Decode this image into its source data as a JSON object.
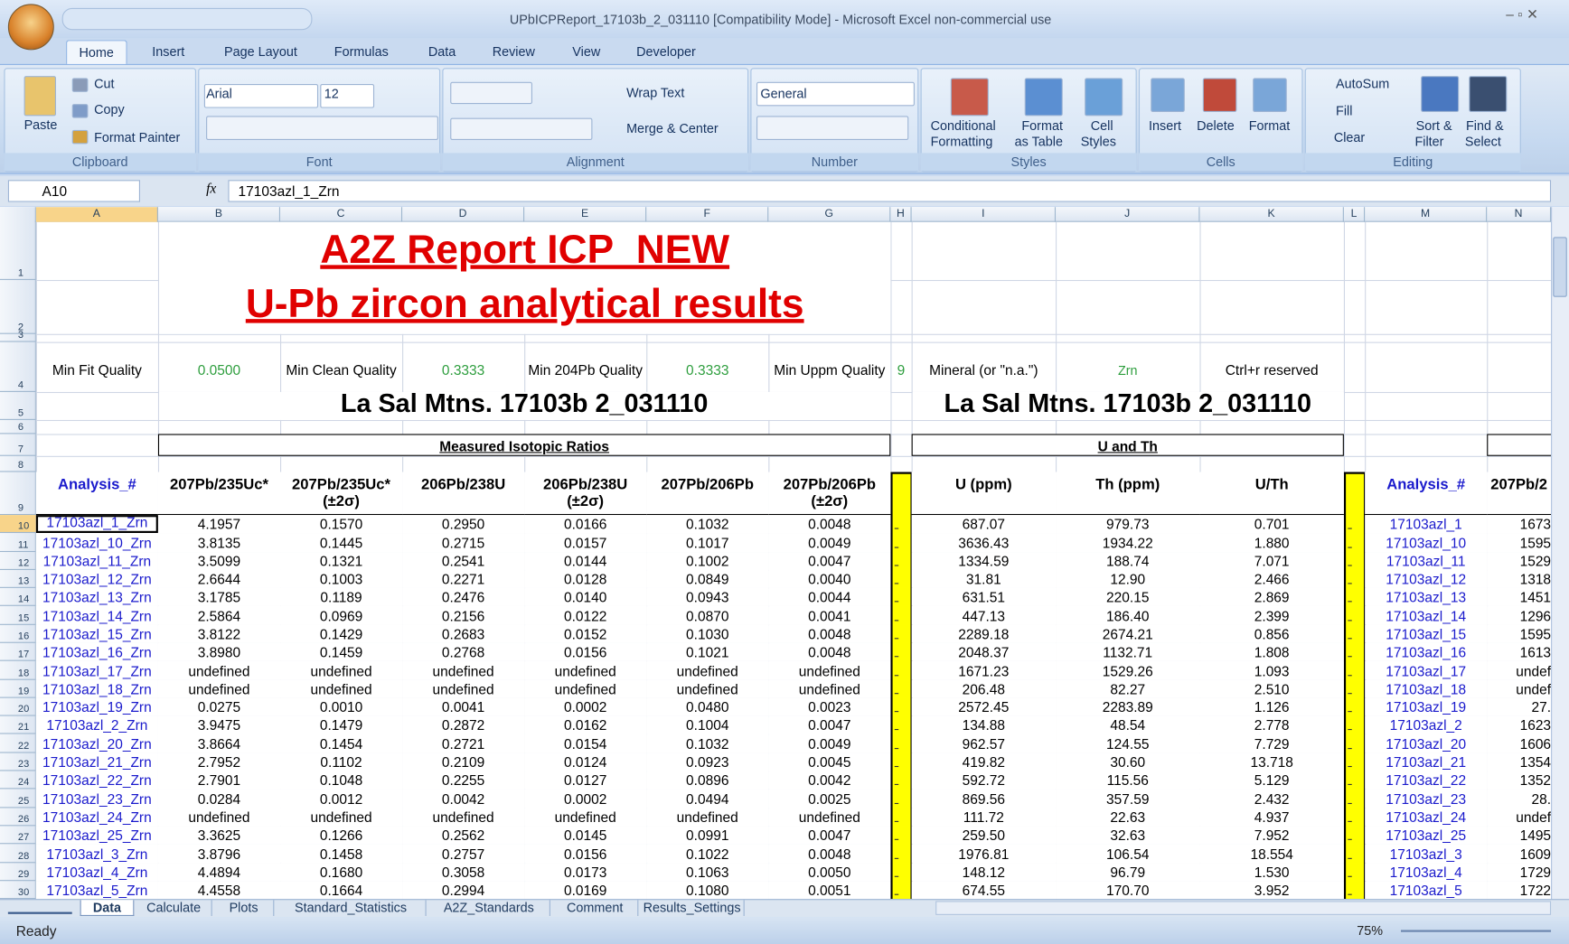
{
  "title_bar": {
    "title": "UPbICPReport_17103b_2_031110  [Compatibility Mode] - Microsoft Excel non-commercial use"
  },
  "ribbon": {
    "tabs": [
      "Home",
      "Insert",
      "Page Layout",
      "Formulas",
      "Data",
      "Review",
      "View",
      "Developer"
    ],
    "active_tab": "Home",
    "groups": [
      {
        "label": "Clipboard",
        "items": [
          "Paste",
          "Cut",
          "Copy",
          "Format Painter"
        ]
      },
      {
        "label": "Font",
        "items": [
          "Arial",
          "12"
        ]
      },
      {
        "label": "Alignment",
        "items": [
          "Wrap Text",
          "Merge & Center"
        ]
      },
      {
        "label": "Number",
        "items": [
          "General"
        ]
      },
      {
        "label": "Styles",
        "items": [
          "Conditional",
          "Formatting",
          "Format",
          "as Table",
          "Cell",
          "Styles"
        ]
      },
      {
        "label": "Cells",
        "items": [
          "Insert",
          "Delete",
          "Format"
        ]
      },
      {
        "label": "Editing",
        "items": [
          "AutoSum",
          "Fill",
          "Clear",
          "Sort &",
          "Filter",
          "Find &",
          "Select"
        ]
      }
    ]
  },
  "formula_bar": {
    "name_box": "A10",
    "fx": "fx",
    "content": "17103azl_1_Zrn"
  },
  "sheet": {
    "columns": [
      "A",
      "B",
      "C",
      "D",
      "E",
      "F",
      "G",
      "H",
      "I",
      "J",
      "K",
      "L",
      "M",
      "N"
    ],
    "row_numbers": [
      1,
      2,
      3,
      4,
      5,
      6,
      7,
      8,
      9,
      10,
      11,
      12,
      13,
      14,
      15,
      16,
      17,
      18,
      19,
      20,
      21,
      22,
      23,
      24,
      25,
      26,
      27,
      28,
      29,
      30
    ],
    "title_1": "A2Z Report ICP_NEW",
    "title_2": "U-Pb zircon analytical results",
    "quality": [
      {
        "label": "Min Fit Quality",
        "value": "0.0500"
      },
      {
        "label": "Min Clean Quality",
        "value": "0.3333"
      },
      {
        "label": "Min 204Pb Quality",
        "value": "0.3333"
      },
      {
        "label": "Min Uppm Quality",
        "value": "9"
      }
    ],
    "mineral_label": "Mineral (or \"n.a.\")",
    "mineral": "Zrn",
    "reserved": "Ctrl+r reserved",
    "location": [
      "La Sal Mtns. 17103b 2_031110",
      "La Sal Mtns. 17103b 2_031110"
    ],
    "sections": [
      "Measured Isotopic Ratios",
      "U and Th"
    ],
    "headers": [
      {
        "text": "Analysis_#"
      },
      {
        "text": "207Pb/235Uc*"
      },
      {
        "text": "207Pb/235Uc*",
        "sub": "(±2σ)"
      },
      {
        "text": "206Pb/238U"
      },
      {
        "text": "206Pb/238U",
        "sub": "(±2σ)"
      },
      {
        "text": "207Pb/206Pb"
      },
      {
        "text": "207Pb/206Pb",
        "sub": "(±2σ)"
      },
      {
        "text": "U (ppm)"
      },
      {
        "text": "Th (ppm)"
      },
      {
        "text": "U/Th"
      },
      {
        "text": "Analysis_#"
      },
      {
        "text": "207Pb/2"
      }
    ],
    "data_rows": [
      [
        "17103azl_1_Zrn",
        "4.1957",
        "0.1570",
        "0.2950",
        "0.0166",
        "0.1032",
        "0.0048",
        "687.07",
        "979.73",
        "0.701",
        "17103azl_1",
        "1673"
      ],
      [
        "17103azl_10_Zrn",
        "3.8135",
        "0.1445",
        "0.2715",
        "0.0157",
        "0.1017",
        "0.0049",
        "3636.43",
        "1934.22",
        "1.880",
        "17103azl_10",
        "1595"
      ],
      [
        "17103azl_11_Zrn",
        "3.5099",
        "0.1321",
        "0.2541",
        "0.0144",
        "0.1002",
        "0.0047",
        "1334.59",
        "188.74",
        "7.071",
        "17103azl_11",
        "1529"
      ],
      [
        "17103azl_12_Zrn",
        "2.6644",
        "0.1003",
        "0.2271",
        "0.0128",
        "0.0849",
        "0.0040",
        "31.81",
        "12.90",
        "2.466",
        "17103azl_12",
        "1318"
      ],
      [
        "17103azl_13_Zrn",
        "3.1785",
        "0.1189",
        "0.2476",
        "0.0140",
        "0.0943",
        "0.0044",
        "631.51",
        "220.15",
        "2.869",
        "17103azl_13",
        "1451"
      ],
      [
        "17103azl_14_Zrn",
        "2.5864",
        "0.0969",
        "0.2156",
        "0.0122",
        "0.0870",
        "0.0041",
        "447.13",
        "186.40",
        "2.399",
        "17103azl_14",
        "1296"
      ],
      [
        "17103azl_15_Zrn",
        "3.8122",
        "0.1429",
        "0.2683",
        "0.0152",
        "0.1030",
        "0.0048",
        "2289.18",
        "2674.21",
        "0.856",
        "17103azl_15",
        "1595"
      ],
      [
        "17103azl_16_Zrn",
        "3.8980",
        "0.1459",
        "0.2768",
        "0.0156",
        "0.1021",
        "0.0048",
        "2048.37",
        "1132.71",
        "1.808",
        "17103azl_16",
        "1613"
      ],
      [
        "17103azl_17_Zrn",
        "undefined",
        "undefined",
        "undefined",
        "undefined",
        "undefined",
        "undefined",
        "1671.23",
        "1529.26",
        "1.093",
        "17103azl_17",
        "undef"
      ],
      [
        "17103azl_18_Zrn",
        "undefined",
        "undefined",
        "undefined",
        "undefined",
        "undefined",
        "undefined",
        "206.48",
        "82.27",
        "2.510",
        "17103azl_18",
        "undef"
      ],
      [
        "17103azl_19_Zrn",
        "0.0275",
        "0.0010",
        "0.0041",
        "0.0002",
        "0.0480",
        "0.0023",
        "2572.45",
        "2283.89",
        "1.126",
        "17103azl_19",
        "27."
      ],
      [
        "17103azl_2_Zrn",
        "3.9475",
        "0.1479",
        "0.2872",
        "0.0162",
        "0.1004",
        "0.0047",
        "134.88",
        "48.54",
        "2.778",
        "17103azl_2",
        "1623"
      ],
      [
        "17103azl_20_Zrn",
        "3.8664",
        "0.1454",
        "0.2721",
        "0.0154",
        "0.1032",
        "0.0049",
        "962.57",
        "124.55",
        "7.729",
        "17103azl_20",
        "1606"
      ],
      [
        "17103azl_21_Zrn",
        "2.7952",
        "0.1102",
        "0.2109",
        "0.0124",
        "0.0923",
        "0.0045",
        "419.82",
        "30.60",
        "13.718",
        "17103azl_21",
        "1354"
      ],
      [
        "17103azl_22_Zrn",
        "2.7901",
        "0.1048",
        "0.2255",
        "0.0127",
        "0.0896",
        "0.0042",
        "592.72",
        "115.56",
        "5.129",
        "17103azl_22",
        "1352"
      ],
      [
        "17103azl_23_Zrn",
        "0.0284",
        "0.0012",
        "0.0042",
        "0.0002",
        "0.0494",
        "0.0025",
        "869.56",
        "357.59",
        "2.432",
        "17103azl_23",
        "28."
      ],
      [
        "17103azl_24_Zrn",
        "undefined",
        "undefined",
        "undefined",
        "undefined",
        "undefined",
        "undefined",
        "111.72",
        "22.63",
        "4.937",
        "17103azl_24",
        "undef"
      ],
      [
        "17103azl_25_Zrn",
        "3.3625",
        "0.1266",
        "0.2562",
        "0.0145",
        "0.0991",
        "0.0047",
        "259.50",
        "32.63",
        "7.952",
        "17103azl_25",
        "1495"
      ],
      [
        "17103azl_3_Zrn",
        "3.8796",
        "0.1458",
        "0.2757",
        "0.0156",
        "0.1022",
        "0.0048",
        "1976.81",
        "106.54",
        "18.554",
        "17103azl_3",
        "1609"
      ],
      [
        "17103azl_4_Zrn",
        "4.4894",
        "0.1680",
        "0.3058",
        "0.0173",
        "0.1063",
        "0.0050",
        "148.12",
        "96.79",
        "1.530",
        "17103azl_4",
        "1729"
      ],
      [
        "17103azl_5_Zrn",
        "4.4558",
        "0.1664",
        "0.2994",
        "0.0169",
        "0.1080",
        "0.0051",
        "674.55",
        "170.70",
        "3.952",
        "17103azl_5",
        "1722"
      ]
    ]
  },
  "sheet_tabs": {
    "tabs": [
      "Data",
      "Calculate",
      "Plots",
      "Standard_Statistics",
      "A2Z_Standards",
      "Comment",
      "Results_Settings"
    ],
    "active": "Data"
  },
  "status_bar": {
    "status": "Ready",
    "zoom": "75%"
  }
}
